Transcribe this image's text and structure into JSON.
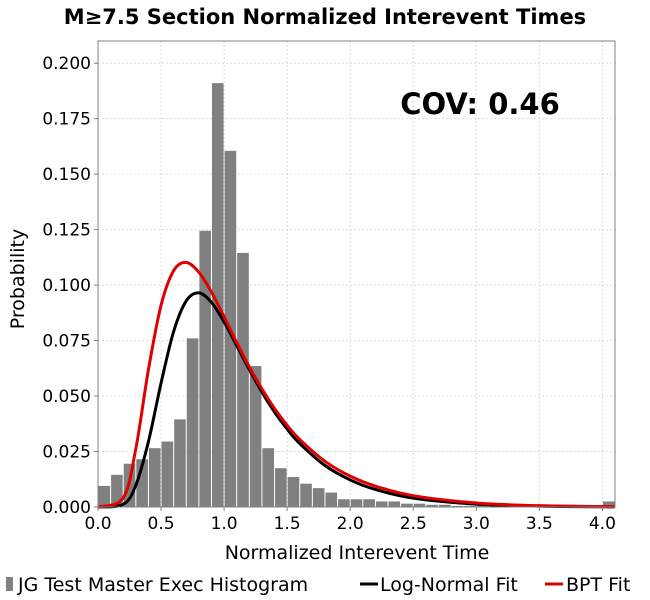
{
  "chart_data": {
    "type": "bar",
    "title": "M≥7.5 Section Normalized Interevent Times",
    "xlabel": "Normalized Interevent Time",
    "ylabel": "Probability",
    "xlim": [
      0.0,
      4.1
    ],
    "ylim": [
      0.0,
      0.21
    ],
    "x_ticks": [
      "0.0",
      "0.5",
      "1.0",
      "1.5",
      "2.0",
      "2.5",
      "3.0",
      "3.5",
      "4.0"
    ],
    "x_tick_values": [
      0.0,
      0.5,
      1.0,
      1.5,
      2.0,
      2.5,
      3.0,
      3.5,
      4.0
    ],
    "y_ticks": [
      "0.000",
      "0.025",
      "0.050",
      "0.075",
      "0.100",
      "0.125",
      "0.150",
      "0.175",
      "0.200"
    ],
    "y_tick_values": [
      0.0,
      0.025,
      0.05,
      0.075,
      0.1,
      0.125,
      0.15,
      0.175,
      0.2
    ],
    "grid": true,
    "annotation": "COV: 0.46",
    "legend_position": "bottom",
    "colors": {
      "histogram": "#808080",
      "lognormal": "#000000",
      "bpt": "#e00000"
    },
    "histogram": {
      "name": "JG Test Master Exec Histogram",
      "bin_width": 0.1,
      "bin_centers": [
        0.05,
        0.15,
        0.25,
        0.35,
        0.45,
        0.55,
        0.65,
        0.75,
        0.85,
        0.95,
        1.05,
        1.15,
        1.25,
        1.35,
        1.45,
        1.55,
        1.65,
        1.75,
        1.85,
        1.95,
        2.05,
        2.15,
        2.25,
        2.35,
        2.45,
        2.55,
        2.65,
        2.75,
        2.85,
        2.95,
        3.05,
        3.15,
        3.25,
        3.35,
        3.45,
        3.55,
        3.65,
        3.75,
        3.85,
        3.95,
        4.05
      ],
      "values": [
        0.0095,
        0.0145,
        0.0195,
        0.0215,
        0.0265,
        0.0295,
        0.0395,
        0.076,
        0.1245,
        0.191,
        0.1605,
        0.1145,
        0.0635,
        0.0265,
        0.0175,
        0.0135,
        0.0105,
        0.0085,
        0.0065,
        0.0035,
        0.0035,
        0.0035,
        0.0025,
        0.0025,
        0.0015,
        0.0015,
        0.001,
        0.001,
        0.0005,
        0.0005,
        0.0005,
        0.0005,
        0.0005,
        0.0003,
        0.0003,
        0.0003,
        0.0002,
        0.0002,
        0.0002,
        0.0002,
        0.0025
      ]
    },
    "series": [
      {
        "name": "Log-Normal Fit",
        "x": [
          0.0,
          0.2,
          0.3,
          0.4,
          0.5,
          0.6,
          0.7,
          0.8,
          0.9,
          1.0,
          1.1,
          1.2,
          1.3,
          1.4,
          1.5,
          1.6,
          1.8,
          2.0,
          2.2,
          2.5,
          3.0,
          3.5,
          4.0,
          4.1
        ],
        "y": [
          0.0,
          0.0012,
          0.0098,
          0.0295,
          0.0558,
          0.0791,
          0.0929,
          0.0965,
          0.0922,
          0.0834,
          0.0727,
          0.0619,
          0.0518,
          0.0428,
          0.0351,
          0.0286,
          0.0187,
          0.0122,
          0.0079,
          0.004,
          0.0013,
          0.0004,
          0.0001,
          0.0001
        ]
      },
      {
        "name": "BPT Fit",
        "x": [
          0.0,
          0.2,
          0.3,
          0.4,
          0.5,
          0.6,
          0.7,
          0.8,
          0.9,
          1.0,
          1.1,
          1.2,
          1.3,
          1.4,
          1.5,
          1.6,
          1.8,
          2.0,
          2.2,
          2.5,
          3.0,
          3.5,
          4.0,
          4.1
        ],
        "y": [
          0.0,
          0.0041,
          0.0263,
          0.0619,
          0.0909,
          0.1065,
          0.1102,
          0.1058,
          0.0968,
          0.0857,
          0.0741,
          0.0631,
          0.0532,
          0.0444,
          0.0368,
          0.0304,
          0.0206,
          0.0139,
          0.0094,
          0.0051,
          0.0018,
          0.0006,
          0.0002,
          0.0002
        ]
      }
    ]
  }
}
